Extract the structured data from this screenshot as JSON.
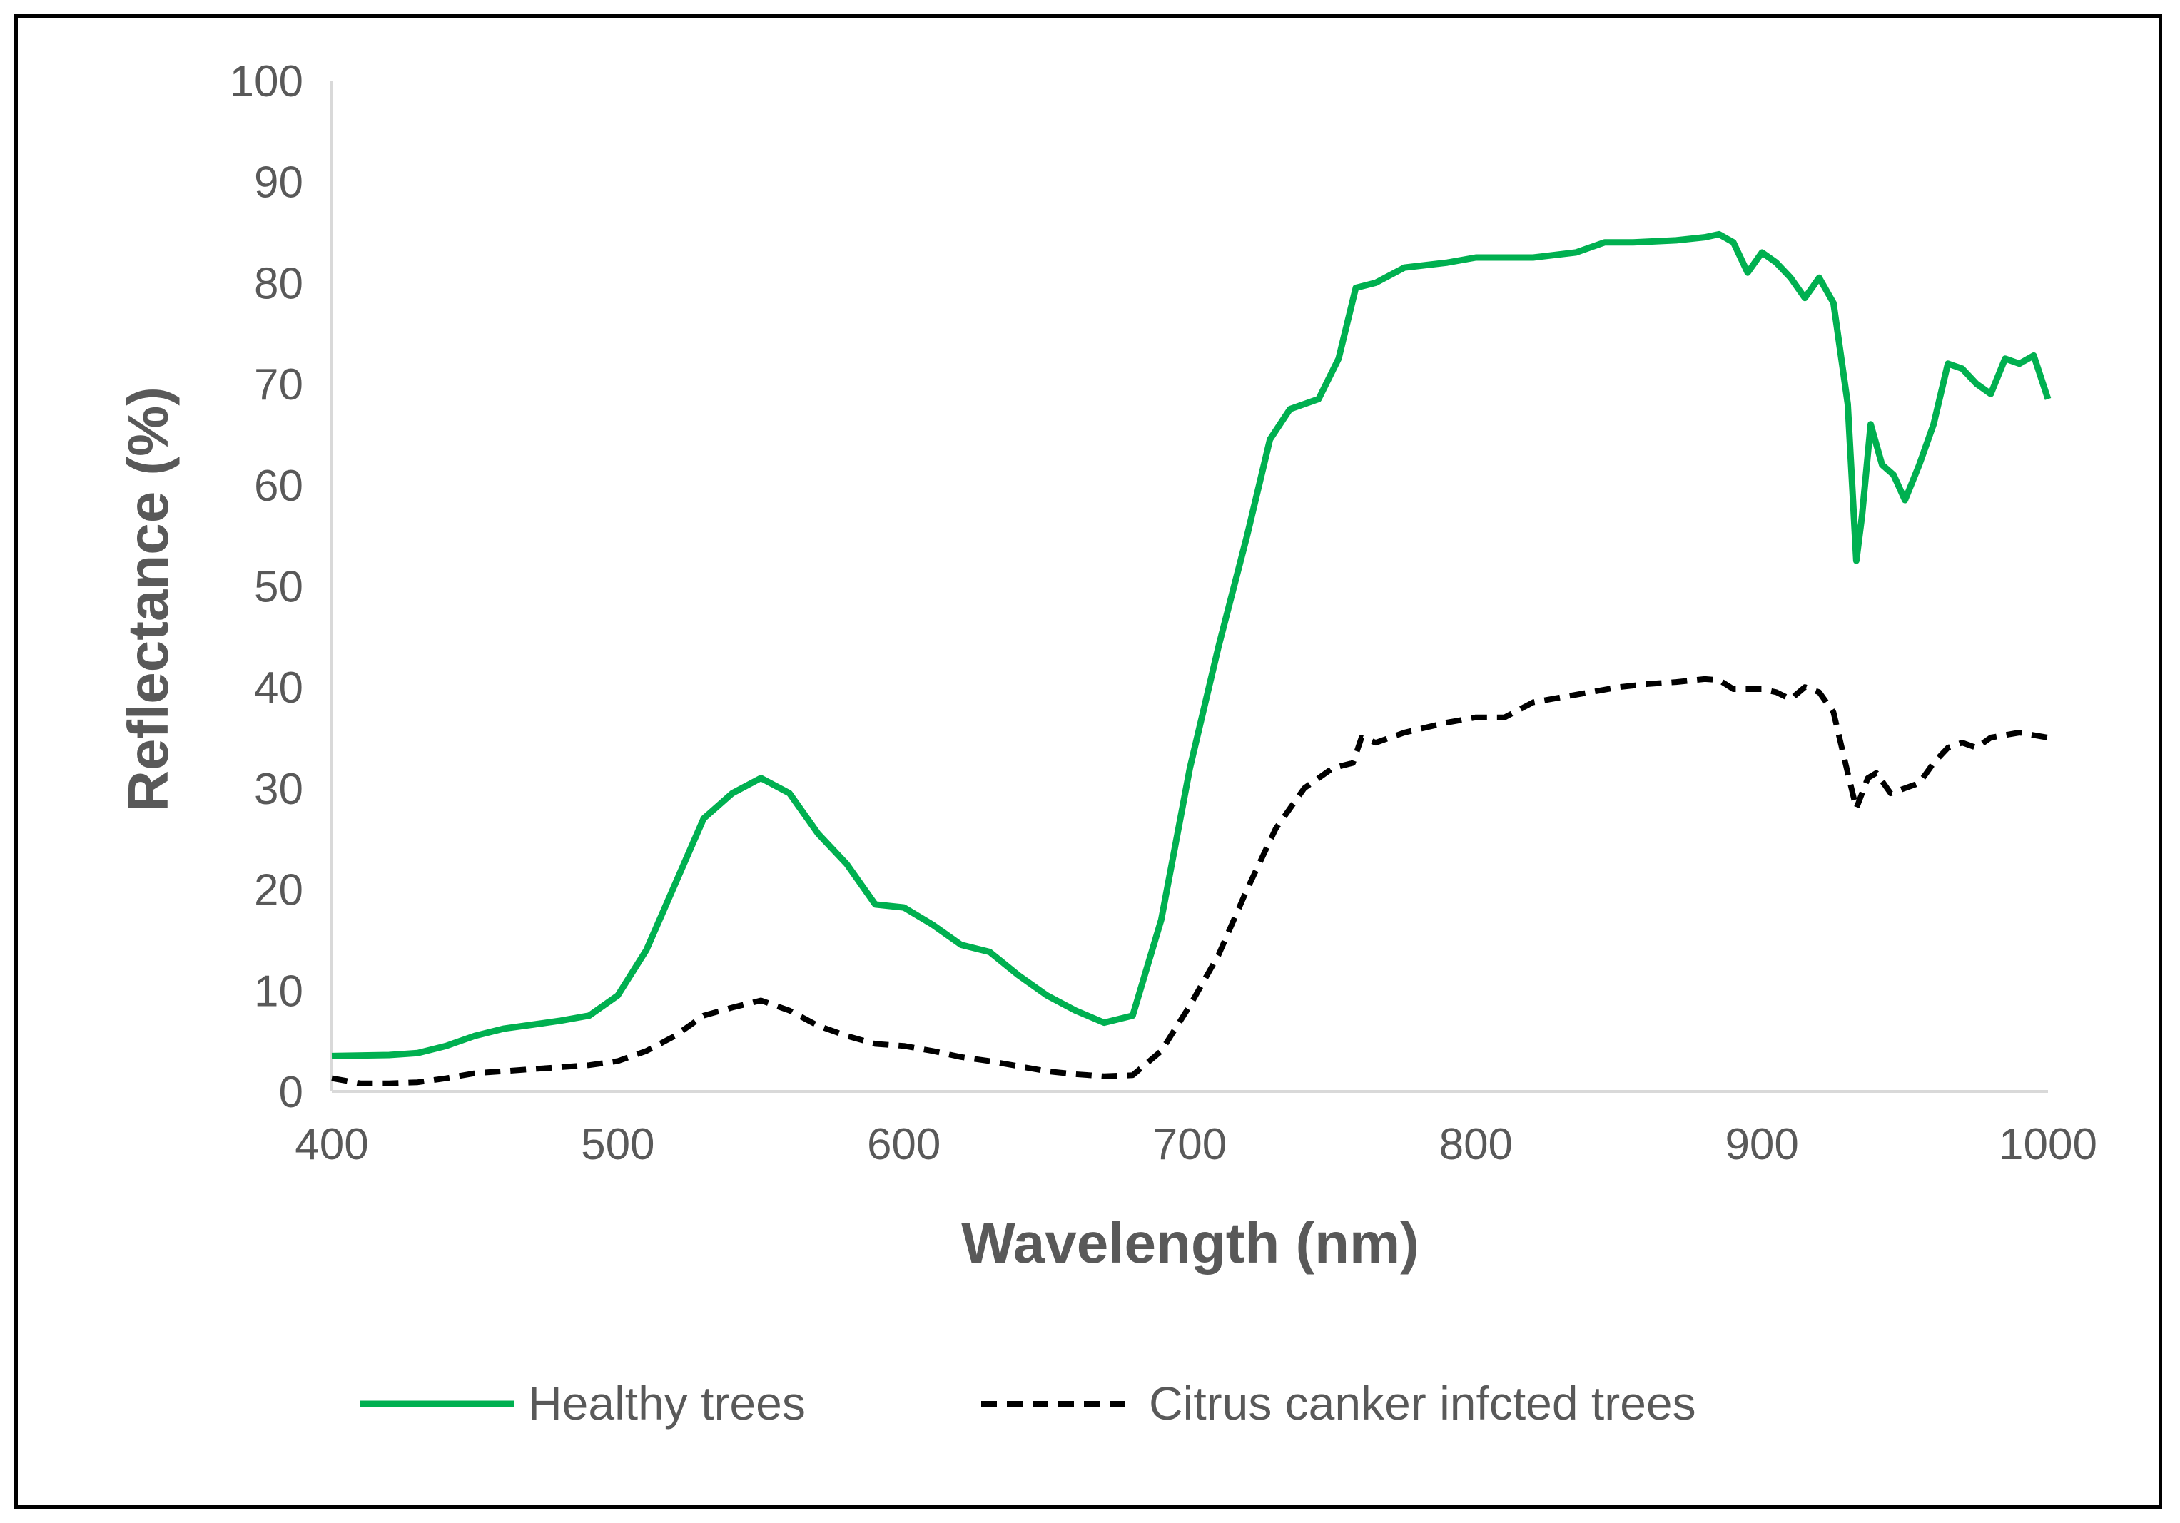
{
  "chart_data": {
    "type": "line",
    "title": "",
    "xlabel": "Wavelength (nm)",
    "ylabel": "Reflectance (%)",
    "xlim": [
      400,
      1000
    ],
    "ylim": [
      0,
      100
    ],
    "x_ticks": [
      400,
      500,
      600,
      700,
      800,
      900,
      1000
    ],
    "y_ticks": [
      0,
      10,
      20,
      30,
      40,
      50,
      60,
      70,
      80,
      90,
      100
    ],
    "grid": false,
    "legend_position": "bottom",
    "series": [
      {
        "name": "Healthy trees",
        "color": "#00b050",
        "style": "solid",
        "points": [
          [
            400,
            3.5
          ],
          [
            420,
            3.6
          ],
          [
            430,
            3.8
          ],
          [
            440,
            4.5
          ],
          [
            450,
            5.5
          ],
          [
            460,
            6.2
          ],
          [
            470,
            6.6
          ],
          [
            480,
            7.0
          ],
          [
            490,
            7.5
          ],
          [
            500,
            9.5
          ],
          [
            510,
            14.0
          ],
          [
            520,
            20.5
          ],
          [
            530,
            27.0
          ],
          [
            540,
            29.5
          ],
          [
            550,
            31.0
          ],
          [
            560,
            29.5
          ],
          [
            570,
            25.5
          ],
          [
            580,
            22.5
          ],
          [
            590,
            18.5
          ],
          [
            600,
            18.2
          ],
          [
            610,
            16.5
          ],
          [
            620,
            14.5
          ],
          [
            630,
            13.8
          ],
          [
            640,
            11.5
          ],
          [
            650,
            9.5
          ],
          [
            660,
            8.0
          ],
          [
            670,
            6.8
          ],
          [
            680,
            7.5
          ],
          [
            690,
            17.0
          ],
          [
            700,
            32.0
          ],
          [
            710,
            44.0
          ],
          [
            720,
            55.0
          ],
          [
            728,
            64.5
          ],
          [
            735,
            67.5
          ],
          [
            745,
            68.5
          ],
          [
            752,
            72.5
          ],
          [
            758,
            79.5
          ],
          [
            765,
            80.0
          ],
          [
            775,
            81.5
          ],
          [
            790,
            82.0
          ],
          [
            800,
            82.5
          ],
          [
            810,
            82.5
          ],
          [
            820,
            82.5
          ],
          [
            835,
            83.0
          ],
          [
            845,
            84.0
          ],
          [
            855,
            84.0
          ],
          [
            870,
            84.2
          ],
          [
            880,
            84.5
          ],
          [
            885,
            84.8
          ],
          [
            890,
            84.0
          ],
          [
            895,
            81.0
          ],
          [
            900,
            83.0
          ],
          [
            905,
            82.0
          ],
          [
            910,
            80.5
          ],
          [
            915,
            78.5
          ],
          [
            920,
            80.5
          ],
          [
            925,
            78.0
          ],
          [
            930,
            68.0
          ],
          [
            933,
            52.5
          ],
          [
            935,
            57.0
          ],
          [
            938,
            66.0
          ],
          [
            942,
            62.0
          ],
          [
            946,
            61.0
          ],
          [
            950,
            58.5
          ],
          [
            955,
            62.0
          ],
          [
            960,
            66.0
          ],
          [
            965,
            72.0
          ],
          [
            970,
            71.5
          ],
          [
            975,
            70.0
          ],
          [
            980,
            69.0
          ],
          [
            985,
            72.5
          ],
          [
            990,
            72.0
          ],
          [
            995,
            72.8
          ],
          [
            1000,
            68.5
          ]
        ]
      },
      {
        "name": "Citrus canker infcted trees",
        "color": "#000000",
        "style": "dashed",
        "points": [
          [
            400,
            1.3
          ],
          [
            410,
            0.8
          ],
          [
            420,
            0.8
          ],
          [
            430,
            0.9
          ],
          [
            440,
            1.3
          ],
          [
            450,
            1.8
          ],
          [
            460,
            2.0
          ],
          [
            470,
            2.2
          ],
          [
            480,
            2.4
          ],
          [
            490,
            2.6
          ],
          [
            500,
            3.0
          ],
          [
            510,
            4.0
          ],
          [
            520,
            5.5
          ],
          [
            530,
            7.5
          ],
          [
            540,
            8.3
          ],
          [
            550,
            9.0
          ],
          [
            560,
            8.0
          ],
          [
            570,
            6.5
          ],
          [
            580,
            5.5
          ],
          [
            590,
            4.7
          ],
          [
            600,
            4.5
          ],
          [
            610,
            4.0
          ],
          [
            620,
            3.4
          ],
          [
            630,
            3.0
          ],
          [
            640,
            2.5
          ],
          [
            650,
            2.0
          ],
          [
            660,
            1.7
          ],
          [
            670,
            1.5
          ],
          [
            680,
            1.6
          ],
          [
            690,
            4.0
          ],
          [
            700,
            8.5
          ],
          [
            710,
            13.5
          ],
          [
            720,
            20.0
          ],
          [
            730,
            26.0
          ],
          [
            740,
            30.0
          ],
          [
            750,
            32.0
          ],
          [
            757,
            32.5
          ],
          [
            760,
            35.0
          ],
          [
            765,
            34.5
          ],
          [
            775,
            35.5
          ],
          [
            790,
            36.5
          ],
          [
            800,
            37.0
          ],
          [
            810,
            37.0
          ],
          [
            820,
            38.5
          ],
          [
            830,
            39.0
          ],
          [
            840,
            39.5
          ],
          [
            850,
            40.0
          ],
          [
            860,
            40.3
          ],
          [
            870,
            40.5
          ],
          [
            880,
            40.8
          ],
          [
            885,
            40.7
          ],
          [
            890,
            39.8
          ],
          [
            900,
            39.8
          ],
          [
            905,
            39.5
          ],
          [
            910,
            38.8
          ],
          [
            915,
            40.0
          ],
          [
            920,
            39.5
          ],
          [
            925,
            37.5
          ],
          [
            930,
            31.5
          ],
          [
            933,
            28.0
          ],
          [
            937,
            31.0
          ],
          [
            940,
            31.5
          ],
          [
            945,
            29.5
          ],
          [
            950,
            30.0
          ],
          [
            955,
            30.5
          ],
          [
            960,
            32.5
          ],
          [
            965,
            34.0
          ],
          [
            970,
            34.5
          ],
          [
            975,
            34.0
          ],
          [
            980,
            35.0
          ],
          [
            990,
            35.5
          ],
          [
            1000,
            35.0
          ]
        ]
      }
    ]
  }
}
